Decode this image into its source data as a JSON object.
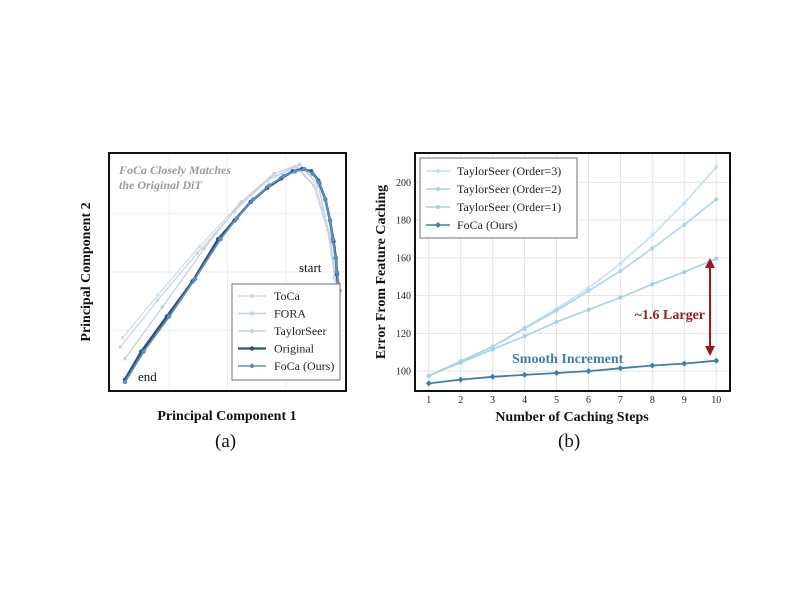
{
  "figure": {
    "caption_a": "(a)",
    "caption_b": "(b)"
  },
  "chart_data": [
    {
      "type": "line",
      "panel": "a",
      "title": "",
      "xlabel": "Principal Component 1",
      "ylabel": "Principal Component 2",
      "annotation": "FoCa Closely Matches the Original DiT",
      "annotation_lines": [
        "FoCa Closely Matches",
        "the Original DiT"
      ],
      "start_label": "start",
      "end_label": "end",
      "legend_position": "bottom-right",
      "colors": {
        "ToCa": "#d3dde6",
        "FORA": "#c2d0dc",
        "TaylorSeer": "#c8d6e2",
        "Original": "#2f4f82",
        "FoCa (Ours)": "#5d8fbd"
      },
      "series": [
        {
          "name": "ToCa",
          "points": [
            [
              0.05,
              0.22
            ],
            [
              0.2,
              0.4
            ],
            [
              0.38,
              0.61
            ],
            [
              0.55,
              0.79
            ],
            [
              0.68,
              0.9
            ],
            [
              0.8,
              0.95
            ],
            [
              0.88,
              0.86
            ],
            [
              0.94,
              0.66
            ],
            [
              0.96,
              0.47
            ],
            [
              0.98,
              0.4
            ]
          ]
        },
        {
          "name": "FORA",
          "points": [
            [
              0.06,
              0.13
            ],
            [
              0.22,
              0.35
            ],
            [
              0.4,
              0.6
            ],
            [
              0.56,
              0.8
            ],
            [
              0.7,
              0.92
            ],
            [
              0.81,
              0.96
            ],
            [
              0.89,
              0.87
            ],
            [
              0.94,
              0.64
            ],
            [
              0.97,
              0.44
            ]
          ]
        },
        {
          "name": "TaylorSeer",
          "points": [
            [
              0.04,
              0.18
            ],
            [
              0.2,
              0.38
            ],
            [
              0.37,
              0.58
            ],
            [
              0.53,
              0.76
            ],
            [
              0.67,
              0.89
            ],
            [
              0.79,
              0.95
            ],
            [
              0.87,
              0.87
            ],
            [
              0.93,
              0.68
            ],
            [
              0.96,
              0.48
            ],
            [
              0.97,
              0.41
            ]
          ]
        },
        {
          "name": "Original",
          "points": [
            [
              0.06,
              0.04
            ],
            [
              0.13,
              0.16
            ],
            [
              0.24,
              0.31
            ],
            [
              0.35,
              0.46
            ],
            [
              0.46,
              0.64
            ],
            [
              0.53,
              0.72
            ],
            [
              0.6,
              0.8
            ],
            [
              0.67,
              0.86
            ],
            [
              0.73,
              0.9
            ],
            [
              0.78,
              0.93
            ],
            [
              0.82,
              0.94
            ],
            [
              0.86,
              0.93
            ],
            [
              0.89,
              0.89
            ],
            [
              0.92,
              0.81
            ],
            [
              0.94,
              0.72
            ],
            [
              0.955,
              0.63
            ],
            [
              0.965,
              0.56
            ],
            [
              0.97,
              0.49
            ],
            [
              0.975,
              0.44
            ],
            [
              0.98,
              0.42
            ]
          ]
        },
        {
          "name": "FoCa (Ours)",
          "points": [
            [
              0.06,
              0.03
            ],
            [
              0.14,
              0.16
            ],
            [
              0.25,
              0.31
            ],
            [
              0.36,
              0.47
            ],
            [
              0.47,
              0.64
            ],
            [
              0.54,
              0.73
            ],
            [
              0.61,
              0.81
            ],
            [
              0.68,
              0.87
            ],
            [
              0.74,
              0.91
            ],
            [
              0.79,
              0.93
            ],
            [
              0.83,
              0.94
            ],
            [
              0.865,
              0.92
            ],
            [
              0.895,
              0.88
            ],
            [
              0.92,
              0.81
            ],
            [
              0.94,
              0.72
            ],
            [
              0.953,
              0.64
            ],
            [
              0.963,
              0.56
            ],
            [
              0.97,
              0.5
            ],
            [
              0.975,
              0.45
            ],
            [
              0.98,
              0.42
            ]
          ]
        }
      ]
    },
    {
      "type": "line",
      "panel": "b",
      "title": "",
      "xlabel": "Number of Caching Steps",
      "ylabel": "Error From Feature Caching",
      "x": [
        1,
        2,
        3,
        4,
        5,
        6,
        7,
        8,
        9,
        10
      ],
      "xlim": [
        0.6,
        10.4
      ],
      "ylim": [
        90,
        215
      ],
      "yticks": [
        100,
        120,
        140,
        160,
        180,
        200
      ],
      "grid": true,
      "legend_position": "top-left",
      "colors": {
        "TaylorSeer (Order=3)": "#bfe2f0",
        "TaylorSeer (Order=2)": "#a9d4e9",
        "TaylorSeer (Order=1)": "#a3d2e8",
        "FoCa (Ours)": "#3e7fab",
        "arrow": "#9b1b1b"
      },
      "series": [
        {
          "name": "TaylorSeer (Order=3)",
          "values": [
            97.5,
            105.5,
            113,
            123,
            133,
            144,
            157,
            172,
            189,
            208
          ]
        },
        {
          "name": "TaylorSeer (Order=2)",
          "values": [
            97.5,
            105,
            113,
            122.5,
            132,
            142.5,
            153,
            165,
            177.5,
            191
          ]
        },
        {
          "name": "TaylorSeer (Order=1)",
          "values": [
            97.5,
            104.5,
            111.5,
            118.5,
            126,
            132.5,
            139,
            146,
            152.5,
            159.5
          ]
        },
        {
          "name": "FoCa (Ours)",
          "values": [
            93.5,
            95.5,
            97,
            98,
            99,
            100,
            101.5,
            103,
            104,
            105.5
          ]
        }
      ],
      "annotations": {
        "increment": "Smooth Increment",
        "ratio": "~1.6 Larger"
      }
    }
  ]
}
